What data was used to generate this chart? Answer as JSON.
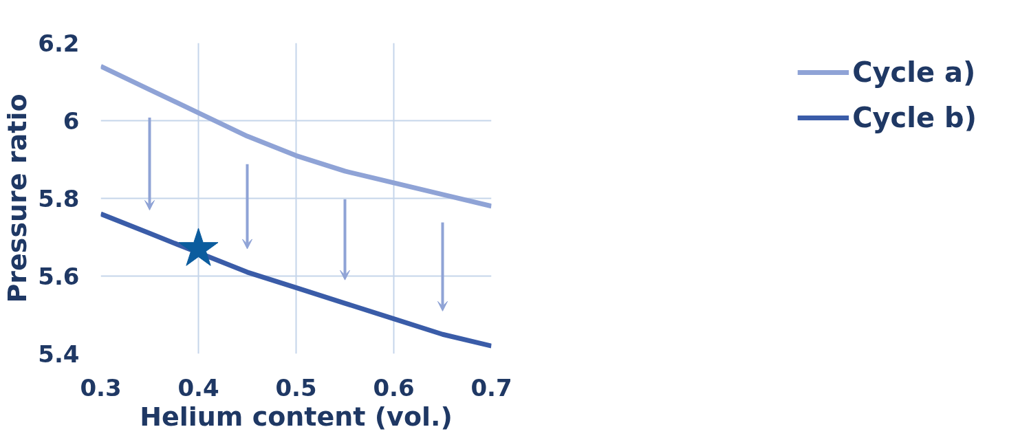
{
  "chart_data": {
    "type": "line",
    "xlabel": "Helium content (vol.)",
    "ylabel": "Pressure ratio",
    "x": [
      0.3,
      0.35,
      0.4,
      0.45,
      0.5,
      0.55,
      0.6,
      0.65,
      0.7
    ],
    "series": [
      {
        "name": "Cycle a)",
        "color": "#8fa3d6",
        "values": [
          6.14,
          6.08,
          6.02,
          5.96,
          5.91,
          5.87,
          5.84,
          5.81,
          5.78
        ]
      },
      {
        "name": "Cycle b)",
        "color": "#3a5ca8",
        "values": [
          5.76,
          5.71,
          5.66,
          5.61,
          5.57,
          5.53,
          5.49,
          5.45,
          5.42
        ]
      },
      {
        "type": "scatter",
        "marker": "star",
        "color": "#0b5c9e",
        "x": [
          0.4
        ],
        "values": [
          5.67
        ]
      }
    ],
    "xlim": [
      0.3,
      0.7
    ],
    "xticks": [
      0.3,
      0.4,
      0.5,
      0.6,
      0.7
    ],
    "ylim": [
      5.4,
      6.2
    ],
    "yticks": [
      5.4,
      5.6,
      5.8,
      6,
      6.2
    ],
    "grid": true,
    "legend": "right",
    "line_style": "solid"
  }
}
